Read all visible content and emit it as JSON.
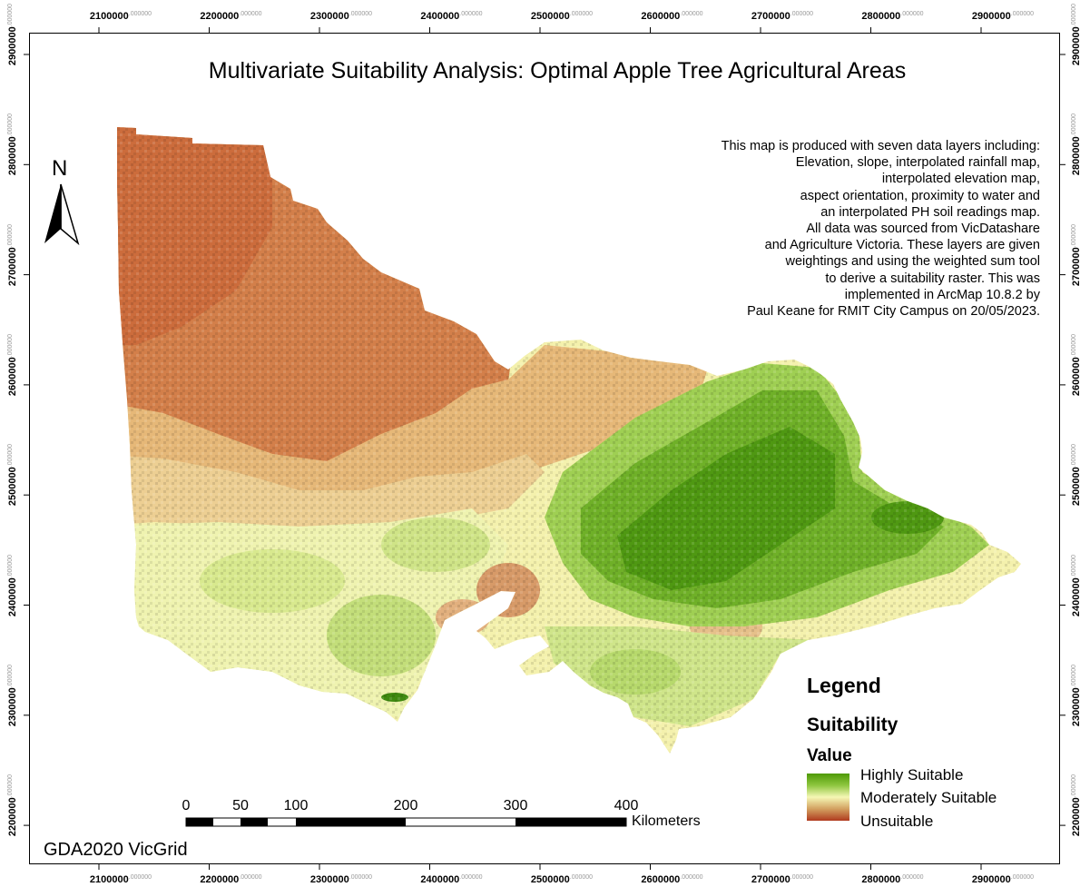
{
  "map": {
    "title": "Multivariate Suitability Analysis: Optimal Apple Tree Agricultural Areas",
    "description_lines": [
      "This map is produced with seven data layers including:",
      "Elevation, slope, interpolated rainfall map,",
      "interpolated elevation map,",
      "aspect orientation, proximity to water and",
      "an interpolated PH soil readings map.",
      "All data was sourced from VicDatashare",
      "and Agriculture Victoria. These layers are given",
      "weightings and using the weighted sum tool",
      "to derive a suitability raster. This was",
      "implemented in ArcMap 10.8.2 by",
      "Paul Keane for RMIT City Campus on 20/05/2023."
    ],
    "projection": "GDA2020 VicGrid",
    "north_arrow": {
      "label": "N",
      "icon": "north-arrow-icon"
    }
  },
  "grid": {
    "x_labels": [
      "2100000",
      "2200000",
      "2300000",
      "2400000",
      "2500000",
      "2600000",
      "2700000",
      "2800000",
      "2900000"
    ],
    "y_labels": [
      "2900000",
      "2800000",
      "2700000",
      "2600000",
      "2500000",
      "2400000",
      "2300000",
      "2200000"
    ],
    "decimal_suffix": ".000000"
  },
  "legend": {
    "title": "Legend",
    "layer": "Suitability",
    "field": "Value",
    "high": "Highly Suitable",
    "mid": "Moderately Suitable",
    "low": "Unsuitable",
    "colors": {
      "high": "#4e9a06",
      "mid": "#f5f7b4",
      "low": "#b03a1e"
    }
  },
  "scale_bar": {
    "labels": [
      "0",
      "50",
      "100",
      "200",
      "300",
      "400"
    ],
    "unit": "Kilometers"
  }
}
